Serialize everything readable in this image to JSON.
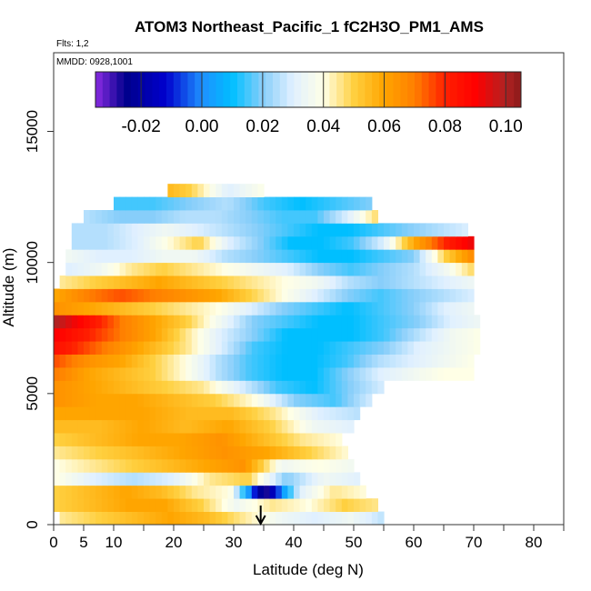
{
  "chart_data": {
    "type": "heatmap",
    "title": "ATOM3 Northeast_Pacific_1 fC2H3O_PM1_AMS",
    "flights_text": "Flts: 1,2",
    "dates_text": "MMDD: 0928,1001",
    "xlabel": "Latitude (deg N)",
    "ylabel": "Altitude (m)",
    "xlim": [
      0,
      85
    ],
    "ylim": [
      0,
      18000
    ],
    "x_ticks": [
      0,
      5,
      10,
      20,
      30,
      40,
      50,
      60,
      70,
      80
    ],
    "x_tick_labels": [
      "0",
      "5",
      "10",
      "20",
      "30",
      "40",
      "50",
      "60",
      "70",
      "80"
    ],
    "x_minor_ticks": [
      15,
      25,
      35,
      45,
      55,
      65,
      75,
      85
    ],
    "y_ticks": [
      0,
      5000,
      10000,
      15000
    ],
    "y_tick_labels": [
      "0",
      "5000",
      "10000",
      "15000"
    ],
    "colorbar": {
      "min": -0.035,
      "max": 0.105,
      "ticks": [
        -0.02,
        0.0,
        0.02,
        0.04,
        0.06,
        0.08,
        0.1
      ],
      "tick_labels": [
        "-0.02",
        "0.00",
        "0.02",
        "0.04",
        "0.06",
        "0.08",
        "0.10"
      ],
      "stops": [
        {
          "v": -0.035,
          "c": "#8a2be2"
        },
        {
          "v": -0.025,
          "c": "#00008b"
        },
        {
          "v": -0.012,
          "c": "#0000cd"
        },
        {
          "v": 0.0,
          "c": "#1e90ff"
        },
        {
          "v": 0.01,
          "c": "#00bfff"
        },
        {
          "v": 0.02,
          "c": "#87cefa"
        },
        {
          "v": 0.03,
          "c": "#e0f0ff"
        },
        {
          "v": 0.04,
          "c": "#ffffe6"
        },
        {
          "v": 0.05,
          "c": "#ffd040"
        },
        {
          "v": 0.06,
          "c": "#ffa500"
        },
        {
          "v": 0.07,
          "c": "#ff7f00"
        },
        {
          "v": 0.08,
          "c": "#ff2000"
        },
        {
          "v": 0.09,
          "c": "#ff0000"
        },
        {
          "v": 0.1,
          "c": "#b22222"
        },
        {
          "v": 0.105,
          "c": "#8b1a1a"
        }
      ]
    },
    "layer_height_m": 500,
    "bands": [
      {
        "alt": 0,
        "lat": [
          1,
          55
        ],
        "vals": [
          0.045,
          0.05,
          0.055,
          0.06,
          0.055,
          0.045,
          0.035,
          0.03,
          0.035,
          0.025
        ]
      },
      {
        "alt": 500,
        "lat": [
          0,
          54
        ],
        "vals": [
          0.05,
          0.055,
          0.06,
          0.06,
          0.05,
          0.035,
          0.045,
          0.04,
          0.05,
          0.045
        ]
      },
      {
        "alt": 1000,
        "lat": [
          0,
          52
        ],
        "vals": [
          0.05,
          0.055,
          0.06,
          0.055,
          0.045,
          0.04,
          -0.03,
          0.03,
          0.045,
          0.04
        ]
      },
      {
        "alt": 1500,
        "lat": [
          0,
          51
        ],
        "vals": [
          0.04,
          0.03,
          0.025,
          0.03,
          0.045,
          0.05,
          0.02,
          0.035,
          0.03
        ]
      },
      {
        "alt": 2000,
        "lat": [
          0,
          50
        ],
        "vals": [
          0.04,
          0.045,
          0.05,
          0.055,
          0.06,
          0.065,
          0.035,
          0.04,
          0.035
        ]
      },
      {
        "alt": 2500,
        "lat": [
          0,
          49
        ],
        "vals": [
          0.045,
          0.05,
          0.055,
          0.06,
          0.065,
          0.06,
          0.05,
          0.04
        ]
      },
      {
        "alt": 3000,
        "lat": [
          0,
          48
        ],
        "vals": [
          0.05,
          0.055,
          0.06,
          0.06,
          0.065,
          0.055,
          0.045,
          0.04
        ]
      },
      {
        "alt": 3500,
        "lat": [
          0,
          50
        ],
        "vals": [
          0.055,
          0.055,
          0.06,
          0.055,
          0.06,
          0.05,
          0.035,
          0.03
        ]
      },
      {
        "alt": 4000,
        "lat": [
          0,
          51
        ],
        "vals": [
          0.06,
          0.06,
          0.06,
          0.055,
          0.055,
          0.045,
          0.03,
          0.025
        ]
      },
      {
        "alt": 4500,
        "lat": [
          0,
          53
        ],
        "vals": [
          0.065,
          0.06,
          0.06,
          0.055,
          0.05,
          0.04,
          0.02,
          0.015,
          0.03
        ]
      },
      {
        "alt": 5000,
        "lat": [
          0,
          55
        ],
        "vals": [
          0.065,
          0.06,
          0.055,
          0.05,
          0.045,
          0.03,
          0.015,
          0.01,
          0.02,
          0.03
        ]
      },
      {
        "alt": 5500,
        "lat": [
          0,
          70
        ],
        "vals": [
          0.07,
          0.06,
          0.055,
          0.05,
          0.04,
          0.025,
          0.015,
          0.01,
          0.01,
          0.02,
          0.03,
          0.035,
          0.04,
          0.04
        ]
      },
      {
        "alt": 6000,
        "lat": [
          0,
          70
        ],
        "vals": [
          0.075,
          0.065,
          0.06,
          0.05,
          0.04,
          0.025,
          0.015,
          0.01,
          0.01,
          0.015,
          0.025,
          0.03,
          0.035,
          0.04
        ]
      },
      {
        "alt": 6500,
        "lat": [
          0,
          71
        ],
        "vals": [
          0.085,
          0.075,
          0.065,
          0.055,
          0.045,
          0.03,
          0.015,
          0.01,
          0.01,
          0.015,
          0.02,
          0.03,
          0.035,
          0.04
        ]
      },
      {
        "alt": 7000,
        "lat": [
          0,
          71
        ],
        "vals": [
          0.09,
          0.08,
          0.07,
          0.06,
          0.045,
          0.03,
          0.02,
          0.01,
          0.01,
          0.01,
          0.015,
          0.025,
          0.035,
          0.04
        ]
      },
      {
        "alt": 7500,
        "lat": [
          0,
          71
        ],
        "vals": [
          0.1,
          0.085,
          0.07,
          0.06,
          0.05,
          0.035,
          0.02,
          0.015,
          0.01,
          0.01,
          0.015,
          0.02,
          0.03,
          0.035
        ]
      },
      {
        "alt": 8000,
        "lat": [
          0,
          70
        ],
        "vals": [
          0.065,
          0.06,
          0.055,
          0.05,
          0.045,
          0.04,
          0.03,
          0.02,
          0.015,
          0.01,
          0.015,
          0.02,
          0.03,
          0.035
        ]
      },
      {
        "alt": 8500,
        "lat": [
          0,
          70
        ],
        "vals": [
          0.06,
          0.07,
          0.075,
          0.07,
          0.065,
          0.06,
          0.05,
          0.04,
          0.03,
          0.02,
          0.015,
          0.02,
          0.025,
          0.03
        ]
      },
      {
        "alt": 9000,
        "lat": [
          1,
          70
        ],
        "vals": [
          0.045,
          0.05,
          0.055,
          0.06,
          0.055,
          0.05,
          0.045,
          0.04,
          0.035,
          0.025,
          0.02,
          0.025,
          0.03,
          0.035
        ]
      },
      {
        "alt": 9500,
        "lat": [
          2,
          70
        ],
        "vals": [
          0.03,
          0.035,
          0.045,
          0.05,
          0.045,
          0.04,
          0.035,
          0.03,
          0.02,
          0.015,
          0.02,
          0.025,
          0.035,
          0.05
        ]
      },
      {
        "alt": 10000,
        "lat": [
          2,
          70
        ],
        "vals": [
          0.035,
          0.03,
          0.03,
          0.035,
          0.035,
          0.025,
          0.02,
          0.015,
          0.01,
          0.01,
          0.015,
          0.02,
          0.05,
          0.07
        ]
      },
      {
        "alt": 10500,
        "lat": [
          3,
          70
        ],
        "vals": [
          0.025,
          0.025,
          0.03,
          0.04,
          0.05,
          0.03,
          0.02,
          0.01,
          0.01,
          0.015,
          0.03,
          0.06,
          0.08,
          0.095
        ]
      },
      {
        "alt": 11000,
        "lat": [
          3,
          69
        ],
        "vals": [
          0.025,
          0.025,
          0.03,
          0.035,
          0.03,
          0.025,
          0.02,
          0.015,
          0.01,
          0.01,
          0.015,
          0.02,
          0.025,
          0.03
        ]
      },
      {
        "alt": 11500,
        "lat": [
          5,
          54
        ],
        "vals": [
          0.025,
          0.02,
          0.02,
          0.025,
          0.025,
          0.02,
          0.015,
          0.015,
          0.03,
          0.05
        ]
      },
      {
        "alt": 12000,
        "lat": [
          10,
          53
        ],
        "vals": [
          0.015,
          0.015,
          0.02,
          0.025,
          0.015,
          0.01,
          0.015,
          0.02
        ]
      },
      {
        "alt": 12500,
        "lat": [
          19,
          35
        ],
        "vals": [
          0.055,
          0.05,
          0.04,
          0.03,
          0.035,
          0.04
        ]
      }
    ],
    "arrow_marker": {
      "lat": 34.5,
      "label": "down-arrow"
    }
  }
}
